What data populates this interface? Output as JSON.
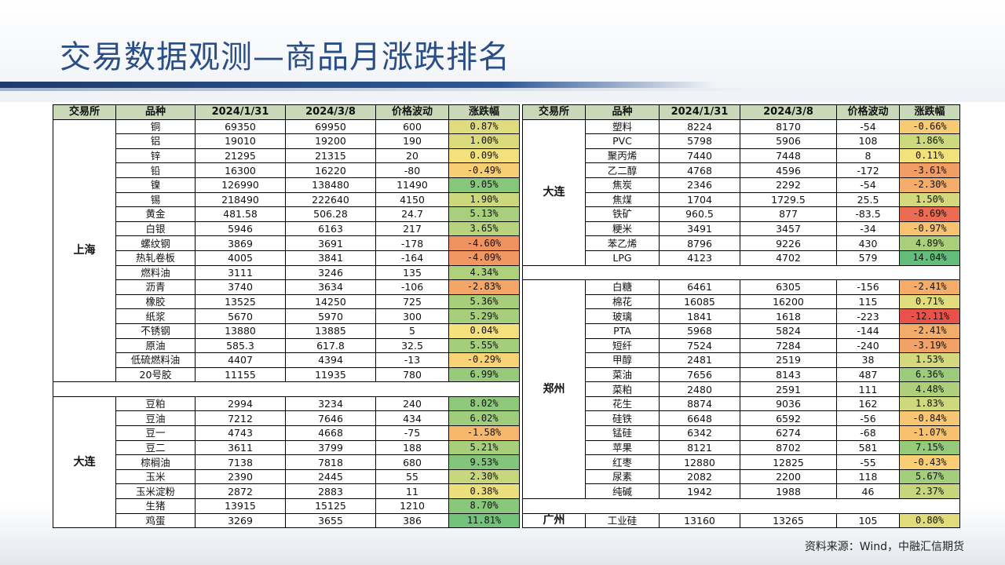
{
  "title": "交易数据观测—商品月涨跌排名",
  "headers": [
    "交易所",
    "品种",
    "2024/1/31",
    "2024/3/8",
    "价格波动",
    "涨跌幅"
  ],
  "left_groups": [
    {
      "exchange": "上海",
      "rows": [
        [
          "铜",
          "69350",
          "69950",
          "600",
          "0.87%"
        ],
        [
          "铝",
          "19010",
          "19200",
          "190",
          "1.00%"
        ],
        [
          "锌",
          "21295",
          "21315",
          "20",
          "0.09%"
        ],
        [
          "铅",
          "16300",
          "16220",
          "-80",
          "-0.49%"
        ],
        [
          "镍",
          "126990",
          "138480",
          "11490",
          "9.05%"
        ],
        [
          "锡",
          "218490",
          "222640",
          "4150",
          "1.90%"
        ],
        [
          "黄金",
          "481.58",
          "506.28",
          "24.7",
          "5.13%"
        ],
        [
          "白银",
          "5946",
          "6163",
          "217",
          "3.65%"
        ],
        [
          "螺纹钢",
          "3869",
          "3691",
          "-178",
          "-4.60%"
        ],
        [
          "热轧卷板",
          "4005",
          "3841",
          "-164",
          "-4.09%"
        ],
        [
          "燃料油",
          "3111",
          "3246",
          "135",
          "4.34%"
        ],
        [
          "沥青",
          "3740",
          "3634",
          "-106",
          "-2.83%"
        ],
        [
          "橡胶",
          "13525",
          "14250",
          "725",
          "5.36%"
        ],
        [
          "纸浆",
          "5670",
          "5970",
          "300",
          "5.29%"
        ],
        [
          "不锈钢",
          "13880",
          "13885",
          "5",
          "0.04%"
        ],
        [
          "原油",
          "585.3",
          "617.8",
          "32.5",
          "5.55%"
        ],
        [
          "低硫燃料油",
          "4407",
          "4394",
          "-13",
          "-0.29%"
        ],
        [
          "20号胶",
          "11155",
          "11935",
          "780",
          "6.99%"
        ]
      ]
    },
    {
      "exchange": "大连",
      "rows": [
        [
          "豆粕",
          "2994",
          "3234",
          "240",
          "8.02%"
        ],
        [
          "豆油",
          "7212",
          "7646",
          "434",
          "6.02%"
        ],
        [
          "豆一",
          "4743",
          "4668",
          "-75",
          "-1.58%"
        ],
        [
          "豆二",
          "3611",
          "3799",
          "188",
          "5.21%"
        ],
        [
          "棕榈油",
          "7138",
          "7818",
          "680",
          "9.53%"
        ],
        [
          "玉米",
          "2390",
          "2445",
          "55",
          "2.30%"
        ],
        [
          "玉米淀粉",
          "2872",
          "2883",
          "11",
          "0.38%"
        ],
        [
          "生猪",
          "13915",
          "15125",
          "1210",
          "8.70%"
        ],
        [
          "鸡蛋",
          "3269",
          "3655",
          "386",
          "11.81%"
        ]
      ]
    }
  ],
  "right_groups": [
    {
      "exchange": "大连",
      "rows": [
        [
          "塑料",
          "8224",
          "8170",
          "-54",
          "-0.66%"
        ],
        [
          "PVC",
          "5798",
          "5906",
          "108",
          "1.86%"
        ],
        [
          "聚丙烯",
          "7440",
          "7448",
          "8",
          "0.11%"
        ],
        [
          "乙二醇",
          "4768",
          "4596",
          "-172",
          "-3.61%"
        ],
        [
          "焦炭",
          "2346",
          "2292",
          "-54",
          "-2.30%"
        ],
        [
          "焦煤",
          "1704",
          "1729.5",
          "25.5",
          "1.50%"
        ],
        [
          "铁矿",
          "960.5",
          "877",
          "-83.5",
          "-8.69%"
        ],
        [
          "粳米",
          "3491",
          "3457",
          "-34",
          "-0.97%"
        ],
        [
          "苯乙烯",
          "8796",
          "9226",
          "430",
          "4.89%"
        ],
        [
          "LPG",
          "4123",
          "4702",
          "579",
          "14.04%"
        ]
      ]
    },
    {
      "exchange": "郑州",
      "rows": [
        [
          "白糖",
          "6461",
          "6305",
          "-156",
          "-2.41%"
        ],
        [
          "棉花",
          "16085",
          "16200",
          "115",
          "0.71%"
        ],
        [
          "玻璃",
          "1841",
          "1618",
          "-223",
          "-12.11%"
        ],
        [
          "PTA",
          "5968",
          "5824",
          "-144",
          "-2.41%"
        ],
        [
          "短纤",
          "7524",
          "7284",
          "-240",
          "-3.19%"
        ],
        [
          "甲醇",
          "2481",
          "2519",
          "38",
          "1.53%"
        ],
        [
          "菜油",
          "7656",
          "8143",
          "487",
          "6.36%"
        ],
        [
          "菜粕",
          "2480",
          "2591",
          "111",
          "4.48%"
        ],
        [
          "花生",
          "8874",
          "9036",
          "162",
          "1.83%"
        ],
        [
          "硅铁",
          "6648",
          "6592",
          "-56",
          "-0.84%"
        ],
        [
          "锰硅",
          "6342",
          "6274",
          "-68",
          "-1.07%"
        ],
        [
          "苹果",
          "8121",
          "8702",
          "581",
          "7.15%"
        ],
        [
          "红枣",
          "12880",
          "12825",
          "-55",
          "-0.43%"
        ],
        [
          "尿素",
          "2082",
          "2200",
          "118",
          "5.67%"
        ],
        [
          "纯碱",
          "1942",
          "1988",
          "46",
          "2.37%"
        ]
      ]
    },
    {
      "exchange": "广州",
      "rows": [
        [
          "工业硅",
          "13160",
          "13265",
          "105",
          "0.80%"
        ]
      ]
    }
  ],
  "colors": {
    "header_bg": "#c8d8b8",
    "title": "#2a4e86",
    "scale_low": "#e8524a",
    "scale_mid": "#fbe37c",
    "scale_high": "#63be7b"
  },
  "footnote": "资料来源：Wind，中融汇信期货"
}
